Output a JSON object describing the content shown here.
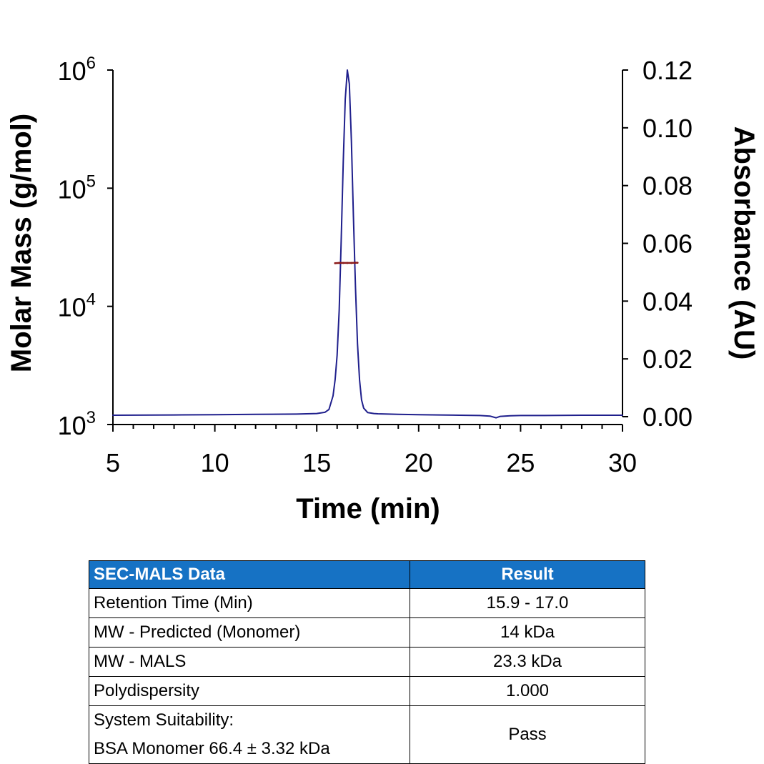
{
  "chart_data": {
    "type": "line",
    "xlabel": "Time (min)",
    "ylabel_left": "Molar Mass (g/mol)",
    "ylabel_right": "Absorbance (AU)",
    "xlim": [
      5,
      30
    ],
    "xticks": [
      "5",
      "10",
      "15",
      "20",
      "25",
      "30"
    ],
    "ylim_left": [
      1000,
      1000000
    ],
    "yscale_left": "log",
    "yticks_left": [
      {
        "base": "10",
        "exp": "3"
      },
      {
        "base": "10",
        "exp": "4"
      },
      {
        "base": "10",
        "exp": "5"
      },
      {
        "base": "10",
        "exp": "6"
      }
    ],
    "ylim_right": [
      0,
      0.12
    ],
    "yticks_right": [
      "0.00",
      "0.02",
      "0.04",
      "0.06",
      "0.08",
      "0.10",
      "0.12"
    ],
    "grid": false,
    "series": [
      {
        "axis": "right",
        "color": "#1f1f8c",
        "x": [
          5.0,
          8.0,
          10.0,
          12.0,
          14.0,
          15.0,
          15.4,
          15.6,
          15.8,
          15.9,
          16.0,
          16.1,
          16.2,
          16.3,
          16.4,
          16.5,
          16.6,
          16.7,
          16.8,
          16.9,
          17.0,
          17.1,
          17.2,
          17.3,
          17.5,
          17.8,
          18.0,
          18.5,
          19.0,
          20.0,
          21.0,
          22.0,
          23.0,
          23.5,
          23.8,
          24.0,
          24.5,
          25.0,
          26.0,
          28.0,
          30.0
        ],
        "y": [
          0.0005,
          0.0006,
          0.0007,
          0.0008,
          0.0009,
          0.0011,
          0.0015,
          0.0025,
          0.0072,
          0.0128,
          0.0213,
          0.0368,
          0.061,
          0.0883,
          0.11,
          0.12,
          0.1152,
          0.0953,
          0.0694,
          0.0447,
          0.0253,
          0.0127,
          0.0058,
          0.003,
          0.0014,
          0.0011,
          0.001,
          0.0009,
          0.0008,
          0.0007,
          0.0006,
          0.0005,
          0.0004,
          0.0002,
          -0.0004,
          0.0001,
          0.0003,
          0.0004,
          0.0004,
          0.0005,
          0.0005
        ]
      },
      {
        "axis": "left",
        "color": "#8b1a1a",
        "x": [
          15.9,
          16.1,
          16.3,
          16.5,
          16.7,
          16.9,
          17.0
        ],
        "y": [
          23200,
          23300,
          23300,
          23300,
          23300,
          23400,
          23400
        ]
      }
    ]
  },
  "table": {
    "header": [
      "SEC-MALS Data",
      "Result"
    ],
    "rows": [
      {
        "label": "Retention Time (Min)",
        "value": "15.9 - 17.0"
      },
      {
        "label": "MW - Predicted (Monomer)",
        "value": "14 kDa"
      },
      {
        "label": "MW - MALS",
        "value": "23.3 kDa"
      },
      {
        "label": "Polydispersity",
        "value": "1.000"
      }
    ],
    "last_row": {
      "label_line1": "System Suitability:",
      "label_line2": "BSA Monomer 66.4 ± 3.32 kDa",
      "value": "Pass"
    },
    "header_color": "#1672c4"
  }
}
